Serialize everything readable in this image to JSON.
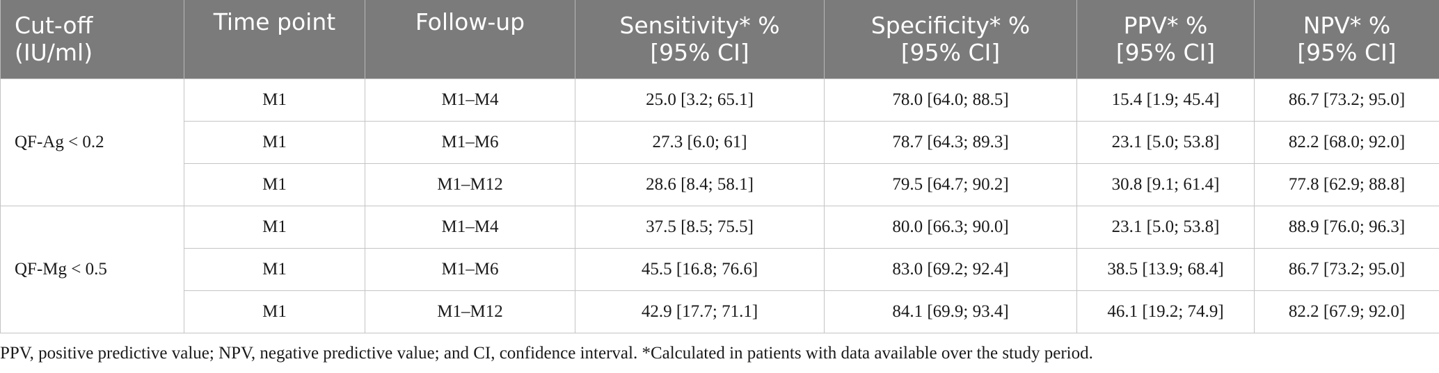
{
  "table": {
    "headers": [
      [
        "Cut-off",
        "(IU/ml)"
      ],
      [
        "Time point"
      ],
      [
        "Follow-up"
      ],
      [
        "Sensitivity* %",
        "[95% CI]"
      ],
      [
        "Specificity* %",
        "[95% CI]"
      ],
      [
        "PPV* %",
        "[95% CI]"
      ],
      [
        "NPV* %",
        "[95% CI]"
      ]
    ],
    "groups": [
      {
        "label": "QF-Ag < 0.2",
        "rows": [
          [
            "M1",
            "M1–M4",
            "25.0 [3.2; 65.1]",
            "78.0 [64.0; 88.5]",
            "15.4 [1.9; 45.4]",
            "86.7 [73.2; 95.0]"
          ],
          [
            "M1",
            "M1–M6",
            "27.3 [6.0; 61]",
            "78.7 [64.3; 89.3]",
            "23.1 [5.0; 53.8]",
            "82.2 [68.0; 92.0]"
          ],
          [
            "M1",
            "M1–M12",
            "28.6 [8.4; 58.1]",
            "79.5 [64.7; 90.2]",
            "30.8 [9.1; 61.4]",
            "77.8 [62.9; 88.8]"
          ]
        ]
      },
      {
        "label": "QF-Mg < 0.5",
        "rows": [
          [
            "M1",
            "M1–M4",
            "37.5 [8.5; 75.5]",
            "80.0 [66.3; 90.0]",
            "23.1 [5.0; 53.8]",
            "88.9 [76.0; 96.3]"
          ],
          [
            "M1",
            "M1–M6",
            "45.5 [16.8; 76.6]",
            "83.0 [69.2; 92.4]",
            "38.5 [13.9; 68.4]",
            "86.7 [73.2; 95.0]"
          ],
          [
            "M1",
            "M1–M12",
            "42.9 [17.7; 71.1]",
            "84.1 [69.9; 93.4]",
            "46.1 [19.2; 74.9]",
            "82.2 [67.9; 92.0]"
          ]
        ]
      }
    ]
  },
  "footnote": "PPV, positive predictive value; NPV, negative predictive value; and CI, confidence interval. *Calculated in patients with data available over the study period.",
  "colors": {
    "header_bg": "#7b7b7b",
    "header_text": "#ffffff",
    "grid_line": "#c4c4c4"
  }
}
